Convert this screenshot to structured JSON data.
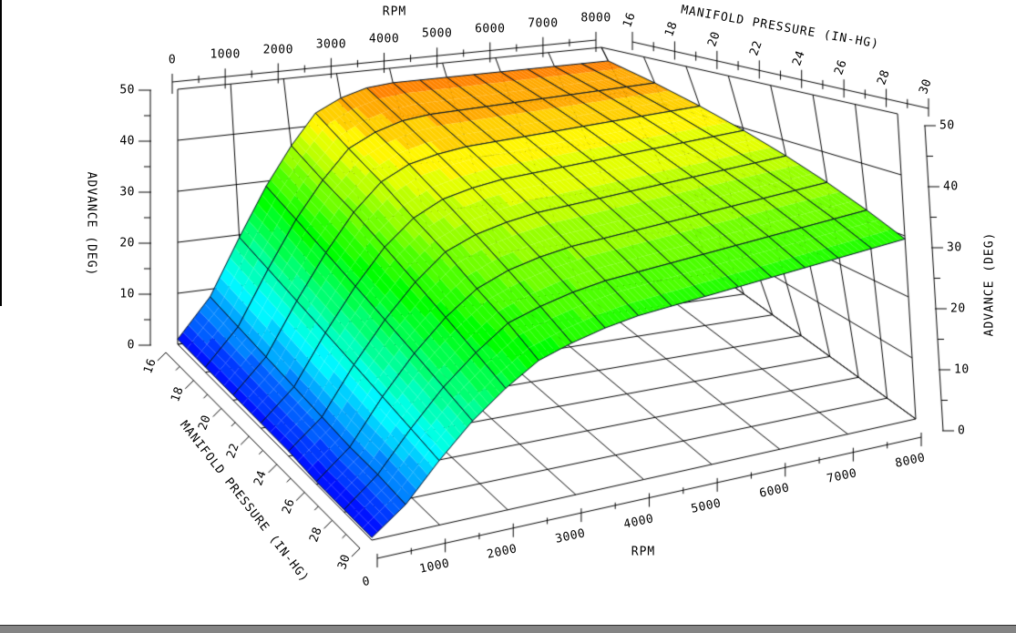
{
  "titles": {
    "rpm_top": "RPM",
    "map_top": "MANIFOLD PRESSURE (IN-HG)",
    "adv_left": "ADVANCE (DEG)",
    "adv_right": "ADVANCE (DEG)",
    "rpm_bottom": "RPM",
    "map_bottom": "MANIFOLD PRESSURE (IN-HG)"
  },
  "window": {
    "background": "#ffffff",
    "left_border_color": "#000000",
    "bottom_bar_color": "#848484"
  },
  "chart_data": {
    "type": "surface3d",
    "x_axis": {
      "label": "RPM",
      "min": 0,
      "max": 8000,
      "major_ticks": [
        0,
        1000,
        2000,
        3000,
        4000,
        5000,
        6000,
        7000,
        8000
      ],
      "minor_step": 500
    },
    "y_axis": {
      "label": "MANIFOLD PRESSURE (IN-HG)",
      "min": 16,
      "max": 30,
      "major_ticks": [
        16,
        18,
        20,
        22,
        24,
        26,
        28,
        30
      ],
      "minor_step": 1
    },
    "z_axis": {
      "label": "ADVANCE (DEG)",
      "min": 0,
      "max": 50,
      "major_ticks": [
        0,
        10,
        20,
        30,
        40,
        50
      ],
      "minor_step": 5
    },
    "grid_on": true,
    "legend": "none",
    "rpm_points": [
      0,
      500,
      1000,
      1500,
      2000,
      2500,
      3000,
      3500,
      4000,
      4500,
      5000,
      5500,
      6000,
      6500,
      7000,
      7500,
      8000
    ],
    "map_points": [
      16,
      18,
      20,
      22,
      24,
      26,
      28,
      30
    ],
    "advance_by_map_row": [
      [
        1,
        8.5,
        19.5,
        29,
        36.5,
        42.5,
        45,
        46.5,
        47,
        47,
        47,
        47,
        47,
        47,
        47,
        47,
        47
      ],
      [
        1,
        8,
        18.5,
        27.5,
        34.5,
        40,
        42.5,
        44,
        44.5,
        44.5,
        44.5,
        44.5,
        44.5,
        44.5,
        44.5,
        44.5,
        44.5
      ],
      [
        1,
        7.5,
        17.5,
        26,
        33,
        38,
        40.5,
        41.5,
        42,
        42,
        42,
        42,
        42,
        42,
        42,
        42,
        42
      ],
      [
        1,
        7,
        16.5,
        24.5,
        31,
        35.5,
        38,
        39,
        39.5,
        39.5,
        39.5,
        39.5,
        39.5,
        39.5,
        39.5,
        39.5,
        39.5
      ],
      [
        1,
        6.5,
        15.5,
        23,
        29,
        33.5,
        35.5,
        36.5,
        37,
        37,
        37,
        37,
        37,
        37,
        37,
        37,
        37
      ],
      [
        0.5,
        6,
        14.5,
        21.5,
        27,
        31,
        33,
        34,
        34.5,
        34.5,
        34.5,
        34.5,
        34.5,
        34.5,
        34.5,
        34.5,
        34.5
      ],
      [
        0.5,
        6,
        13.5,
        20,
        25,
        29,
        30.5,
        31.5,
        32,
        32,
        32,
        32,
        32,
        32,
        32,
        32,
        32
      ],
      [
        0.5,
        5.5,
        12.5,
        18.5,
        23,
        26.5,
        28,
        29,
        29.5,
        29.5,
        29.5,
        29.5,
        29.5,
        29.5,
        29.5,
        29.5,
        29.5
      ]
    ],
    "colormap": {
      "style": "rainbow-banded",
      "band_step_deg": 2,
      "low_color": "#0022ff",
      "mid_color": "#22dd00",
      "high_color": "#ff9900",
      "mesh_line_color": "#001228",
      "wall_grid_color": "#000000"
    }
  }
}
